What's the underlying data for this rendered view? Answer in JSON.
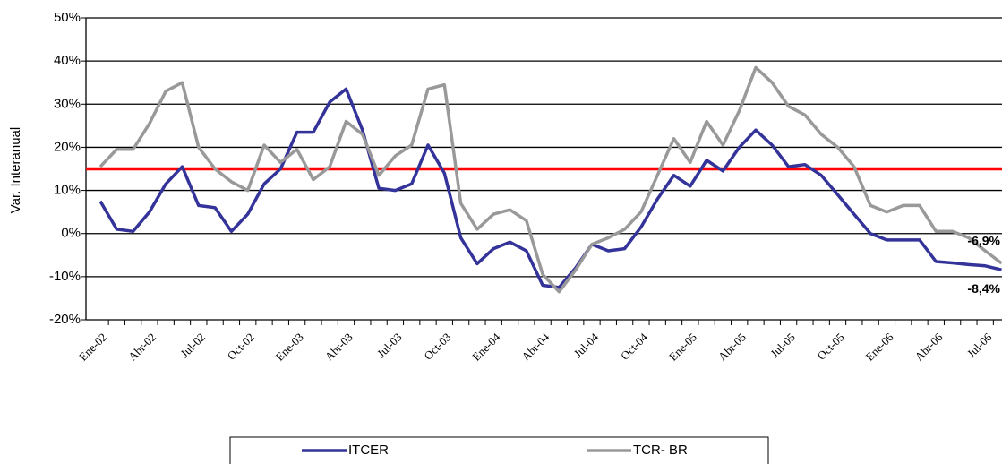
{
  "chart_data": {
    "type": "line",
    "y_label": "Var. Interanual",
    "categories": [
      "Ene-02",
      null,
      null,
      "Abr-02",
      null,
      null,
      "Jul-02",
      null,
      null,
      "Oct-02",
      null,
      null,
      "Ene-03",
      null,
      null,
      "Abr-03",
      null,
      null,
      "Jul-03",
      null,
      null,
      "Oct-03",
      null,
      null,
      "Ene-04",
      null,
      null,
      "Abr-04",
      null,
      null,
      "Jul-04",
      null,
      null,
      "Oct-04",
      null,
      null,
      "Ene-05",
      null,
      null,
      "Abr-05",
      null,
      null,
      "Jul-05",
      null,
      null,
      "Oct-05",
      null,
      null,
      "Ene-06",
      null,
      null,
      "Abr-06",
      null,
      null,
      "Jul-06",
      null
    ],
    "series": [
      {
        "name": "ITCER",
        "color": "#333399",
        "end_label": "-8,4%",
        "values": [
          7.5,
          1,
          0.5,
          5,
          11.5,
          15.5,
          6.5,
          6,
          0.5,
          4.5,
          11.5,
          15,
          23.5,
          23.5,
          30.5,
          33.5,
          24,
          10.5,
          10,
          11.5,
          20.5,
          14,
          -1,
          -7,
          -3.5,
          -2,
          -4,
          -12,
          -12.5,
          -8,
          -2.5,
          -4,
          -3.5,
          1.5,
          8,
          13.5,
          11,
          17,
          14.5,
          20,
          24,
          20.5,
          15.5,
          16,
          13.5,
          9,
          4.5,
          0,
          -1.5,
          -1.5,
          -1.5,
          -6.5,
          -6.8,
          -7.2,
          -7.5,
          -8.4
        ]
      },
      {
        "name": "TCR- BR",
        "color": "#999999",
        "end_label": "-6,9%",
        "values": [
          15.5,
          19.5,
          19.5,
          25.5,
          33,
          35,
          20,
          15,
          12,
          10,
          20.5,
          16.5,
          19.5,
          12.5,
          15.5,
          26,
          23,
          13.5,
          18,
          20.5,
          33.5,
          34.5,
          7,
          1,
          4.5,
          5.5,
          3,
          -9.5,
          -13.5,
          -8.5,
          -2.5,
          -1,
          1,
          5,
          13.5,
          22,
          16.5,
          26,
          20.5,
          28.5,
          38.5,
          35,
          29.5,
          27.5,
          23,
          20,
          15.5,
          6.5,
          5,
          6.5,
          6.5,
          0.5,
          0.5,
          -1,
          -4,
          -6.9
        ]
      }
    ],
    "reference": {
      "value": 15,
      "color": "#ff0000"
    },
    "ylim": [
      -20,
      50
    ],
    "yticks": [
      {
        "value": -20,
        "label": "-20%"
      },
      {
        "value": -10,
        "label": "-10%"
      },
      {
        "value": 0,
        "label": "0%"
      },
      {
        "value": 10,
        "label": "10%"
      },
      {
        "value": 20,
        "label": "20%"
      },
      {
        "value": 30,
        "label": "30%"
      },
      {
        "value": 40,
        "label": "40%"
      },
      {
        "value": 50,
        "label": "50%"
      }
    ],
    "grid": true
  }
}
